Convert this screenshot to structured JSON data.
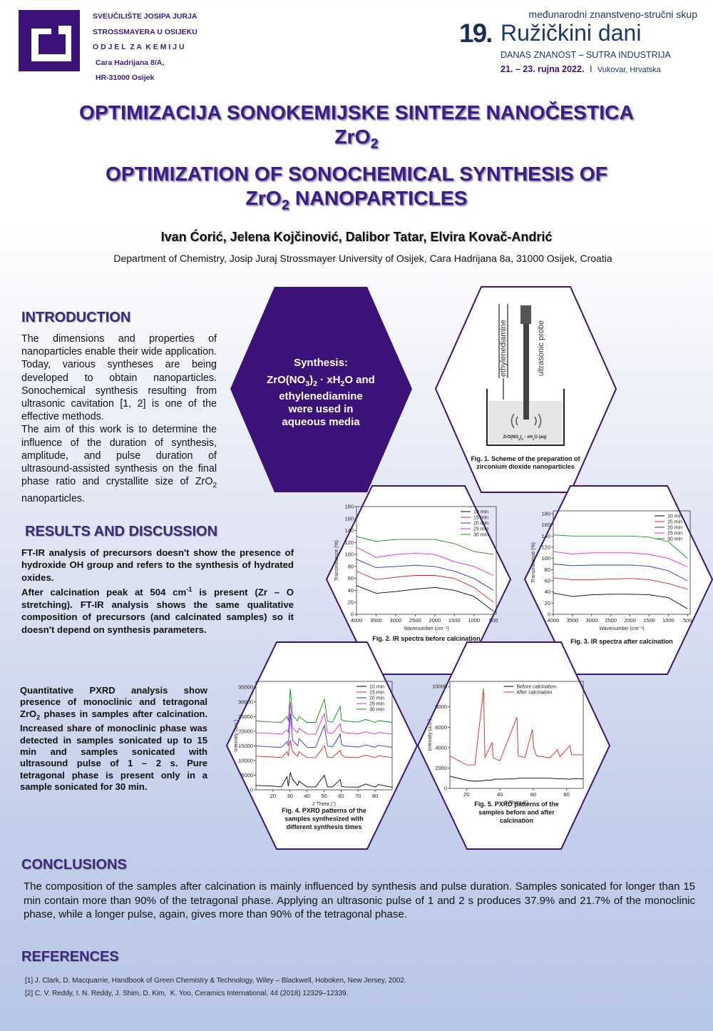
{
  "header": {
    "university": [
      "SVEUČILIŠTE JOSIPA JURJA",
      "STROSSMAYERA U OSIJEKU",
      "O D J E L  Z A  K E M I J U",
      "Cara Hadrijana 8/A,",
      "HR-31000 Osijek"
    ],
    "conference": {
      "subtitle": "međunarodni znanstveno-stručni skup",
      "number": "19.",
      "name": "Ružičkini dani",
      "motto": "DANAS ZNANOST – SUTRA INDUSTRIJA",
      "dates": "21. – 23. rujna 2022.",
      "separator": "I",
      "place": "Vukovar, Hrvatska"
    }
  },
  "title_hr": {
    "line1": [
      "OPTIMIZACIJA SONOKEMIJSKE SINTEZE NANOČESTICA"
    ],
    "line2": [
      "ZrO",
      {
        "text": "2",
        "style": "sub"
      }
    ]
  },
  "title_en": {
    "line1": [
      "OPTIMIZATION OF SONOCHEMICAL SYNTHESIS OF"
    ],
    "line2": [
      "ZrO",
      {
        "text": "2",
        "style": "sub"
      },
      " NANOPARTICLES"
    ]
  },
  "authors": "Ivan Ćorić, Jelena Kojčinović, Dalibor Tatar, Elvira Kovač-Andrić",
  "affiliation": "Department of Chemistry, Josip Juraj Strossmayer University of Osijek, Cara Hadrijana 8a, 31000 Osijek, Croatia",
  "introduction": {
    "heading": "INTRODUCTION",
    "paragraphs": [
      [
        "The dimensions and properties of nanoparticles enable their wide application. Today, various syntheses are being developed to obtain nanoparticles. Sonochemical synthesis resulting from ultrasonic cavitation [1, 2] is one of the effective methods."
      ],
      [
        "The aim of this work is to determine the influence of the duration of synthesis, amplitude, and pulse duration of ultrasound-assisted synthesis on the final phase ratio and crystallite size of ZrO",
        {
          "text": "2",
          "style": "sub"
        },
        " nanoparticles."
      ]
    ]
  },
  "synthesis": [
    [
      "Synthesis:"
    ],
    [
      "ZrO(NO",
      {
        "text": "3",
        "style": "sub"
      },
      ")",
      {
        "text": "2",
        "style": "sub"
      },
      " · xH",
      {
        "text": "2",
        "style": "sub"
      },
      "O and"
    ],
    [
      "ethylenediamine"
    ],
    [
      "were used in"
    ],
    [
      "aqueous media"
    ]
  ],
  "figure1": {
    "tube_label": "ethylenediamine",
    "probe_label": "ultrasonic probe",
    "solution_label": [
      "ZrO(NO",
      {
        "text": "3",
        "style": "sub"
      },
      ")",
      {
        "text": "2",
        "style": "sub"
      },
      " · xH",
      {
        "text": "2",
        "style": "sub"
      },
      "O (aq)"
    ],
    "caption": [
      "Fig. 1. Scheme of the preparation of",
      "zirconium dioxide nanoparticles"
    ]
  },
  "results": {
    "heading": "RESULTS AND DISCUSSION",
    "paragraphs": [
      [
        "FT-IR analysis of precursors doesn't show the presence of hydroxide OH group and refers to the synthesis of hydrated oxides."
      ],
      [
        "After calcination peak at 504 cm",
        {
          "text": "-1",
          "style": "sup"
        },
        " is present (Zr – O stretching). FT-IR analysis shows the same qualitative composition of precursors (and calcinated samples) so it doesn't depend on synthesis parameters."
      ]
    ],
    "pxrd": [
      "Quantitative PXRD analysis show presence of monoclinic and tetragonal ZrO",
      {
        "text": "2",
        "style": "sub"
      },
      " phases in samples after calcination. Increased share of monoclinic phase was detected in samples sonicated up to 15 min and samples sonicated with ultrasound pulse of 1 – 2 s. Pure tetragonal phase is present only in a sample sonicated for 30 min."
    ]
  },
  "conclusions": {
    "heading": "CONCLUSIONS",
    "text": "The composition of the samples after calcination is mainly influenced by synthesis and pulse duration. Samples sonicated for longer than 15 min contain more than 90% of the tetragonal phase. Applying an ultrasonic pulse of 1 and 2 s produces 37.9% and 21.7% of the monoclinic phase, while a longer pulse, again, gives more than 90% of the tetragonal phase."
  },
  "references": {
    "heading": "REFERENCES",
    "items": [
      "[1] J. Clark, D. Macquarrie, Handbook of Green Chemistry & Technology, Wiley – Blackwell, Hoboken, New Jersey, 2002.",
      "[2] C. V. Reddy, I. N. Reddy, J. Shim, D. Kim,  K. Yoo, Ceramics International, 44 (2018) 12329–12339."
    ]
  },
  "chart_data": [
    {
      "type": "line",
      "caption": [
        "Fig. 2. IR spectra before calcination"
      ],
      "xlabel": "Wavenumber (cm⁻¹)",
      "ylabel": "Transmittance (%)",
      "x": [
        4000,
        3500,
        3000,
        2500,
        2000,
        1500,
        1000,
        500
      ],
      "xlim": [
        4000,
        430
      ],
      "xticks": [
        4000,
        3500,
        3000,
        2500,
        2000,
        1500,
        1000,
        500
      ],
      "ylim": [
        0,
        180
      ],
      "yticks": [
        0,
        20,
        40,
        60,
        80,
        100,
        120,
        140,
        160,
        180
      ],
      "legend": "upper right",
      "series": [
        {
          "name": "10 min",
          "color": "#000000",
          "values": [
            48,
            35,
            38,
            42,
            45,
            40,
            30,
            5
          ]
        },
        {
          "name": "15 min",
          "color": "#e02020",
          "values": [
            72,
            58,
            62,
            65,
            65,
            60,
            45,
            20
          ]
        },
        {
          "name": "20 min",
          "color": "#2030e0",
          "values": [
            92,
            78,
            80,
            82,
            80,
            72,
            60,
            40
          ]
        },
        {
          "name": "25 min",
          "color": "#e020e0",
          "values": [
            112,
            95,
            100,
            102,
            100,
            88,
            80,
            65
          ]
        },
        {
          "name": "30 min",
          "color": "#109010",
          "values": [
            130,
            122,
            125,
            125,
            125,
            118,
            105,
            100
          ]
        }
      ]
    },
    {
      "type": "line",
      "caption": [
        "Fig. 3. IR spectra after calcination"
      ],
      "xlabel": "Wavenumber (cm⁻¹)",
      "ylabel": "Transmittance (%)",
      "x": [
        4000,
        3500,
        3000,
        2500,
        2000,
        1500,
        1000,
        500
      ],
      "xlim": [
        4000,
        430
      ],
      "xticks": [
        4000,
        3500,
        3000,
        2500,
        2000,
        1500,
        1000,
        500
      ],
      "ylim": [
        0,
        185
      ],
      "yticks": [
        0,
        20,
        40,
        60,
        80,
        100,
        120,
        140,
        160,
        180
      ],
      "legend": "upper right",
      "series": [
        {
          "name": "10 min",
          "color": "#000000",
          "values": [
            38,
            32,
            35,
            36,
            36,
            35,
            30,
            10
          ]
        },
        {
          "name": "15 min",
          "color": "#e02020",
          "values": [
            65,
            62,
            62,
            63,
            64,
            62,
            55,
            45
          ]
        },
        {
          "name": "20 min",
          "color": "#2030e0",
          "values": [
            90,
            87,
            88,
            88,
            88,
            86,
            78,
            60
          ]
        },
        {
          "name": "25 min",
          "color": "#e020e0",
          "values": [
            112,
            108,
            110,
            110,
            110,
            107,
            100,
            85
          ]
        },
        {
          "name": "30 min",
          "color": "#109010",
          "values": [
            142,
            140,
            140,
            140,
            140,
            138,
            130,
            100
          ]
        }
      ]
    },
    {
      "type": "line",
      "caption": [
        "Fig. 4. PXRD patterns of the",
        "samples synthesized with",
        "different synthesis times"
      ],
      "xlabel": "2 Theta (°)",
      "ylabel": "Intensity (a.u.)",
      "x": [
        10,
        20,
        25,
        28.2,
        29,
        30.2,
        31.5,
        34.5,
        35.3,
        40,
        45,
        50.2,
        52,
        55,
        59.5,
        60.2,
        62,
        70,
        74.5,
        80,
        82,
        90
      ],
      "xlim": [
        10,
        90
      ],
      "xticks": [
        20,
        30,
        40,
        50,
        60,
        70,
        80
      ],
      "ylim": [
        0,
        37000
      ],
      "yticks": [
        0,
        5000,
        10000,
        15000,
        20000,
        25000,
        30000,
        35000
      ],
      "legend": "upper right",
      "series": [
        {
          "name": "10 min",
          "color": "#000000",
          "values": [
            1500,
            1300,
            1000,
            4500,
            1200,
            6000,
            3500,
            1500,
            3000,
            1000,
            1000,
            5000,
            1000,
            1000,
            3500,
            1200,
            1000,
            900,
            2000,
            900,
            1800,
            900
          ]
        },
        {
          "name": "15 min",
          "color": "#e02020",
          "values": [
            11500,
            11200,
            11000,
            13000,
            11500,
            17000,
            13000,
            11500,
            13000,
            11000,
            11000,
            15000,
            11200,
            11000,
            13500,
            12000,
            11200,
            11000,
            11800,
            11000,
            11600,
            11000
          ]
        },
        {
          "name": "20 min",
          "color": "#2030e0",
          "values": [
            15000,
            14600,
            14500,
            16500,
            15000,
            26000,
            17000,
            15000,
            17500,
            14500,
            14500,
            22000,
            15000,
            14600,
            19000,
            15500,
            15000,
            14600,
            15300,
            14500,
            15200,
            14500
          ]
        },
        {
          "name": "25 min",
          "color": "#e020e0",
          "values": [
            19500,
            19200,
            19000,
            20500,
            19500,
            30000,
            21000,
            19500,
            21000,
            19000,
            19000,
            26000,
            19500,
            19200,
            22500,
            20000,
            19500,
            19100,
            19800,
            19000,
            19600,
            19000
          ]
        },
        {
          "name": "30 min",
          "color": "#109010",
          "values": [
            23500,
            23100,
            23000,
            25000,
            23500,
            34500,
            25500,
            23500,
            25000,
            23000,
            23000,
            31000,
            23500,
            23100,
            28500,
            24000,
            23500,
            23100,
            24000,
            23000,
            23600,
            23000
          ]
        }
      ]
    },
    {
      "type": "line",
      "caption": [
        "Fig. 5. PXRD patterns of the",
        "samples before and after",
        "calcination"
      ],
      "xlabel": "2 Theta (°)",
      "ylabel": "Intensity (a.u.)",
      "x": [
        10,
        20,
        25,
        30.2,
        31,
        35.3,
        36,
        40,
        50.2,
        51,
        55,
        59.5,
        60.2,
        62,
        70,
        74.5,
        76,
        82,
        83,
        90
      ],
      "xlim": [
        10,
        90
      ],
      "xticks": [
        20,
        40,
        60,
        80
      ],
      "ylim": [
        0,
        10500
      ],
      "yticks": [
        0,
        2000,
        4000,
        6000,
        8000,
        10000
      ],
      "legend": "upper center",
      "series": [
        {
          "name": "Before calcination",
          "color": "#000000",
          "values": [
            1200,
            800,
            700,
            750,
            800,
            800,
            900,
            900,
            950,
            1000,
            1000,
            1000,
            1000,
            1000,
            1000,
            950,
            950,
            900,
            950,
            950
          ]
        },
        {
          "name": "After calcination",
          "color": "#e02020",
          "values": [
            3200,
            2300,
            2300,
            9800,
            3000,
            4500,
            3000,
            2700,
            7000,
            3200,
            3000,
            5800,
            4000,
            3200,
            3000,
            3800,
            3100,
            4200,
            3300,
            3300
          ]
        }
      ]
    }
  ]
}
